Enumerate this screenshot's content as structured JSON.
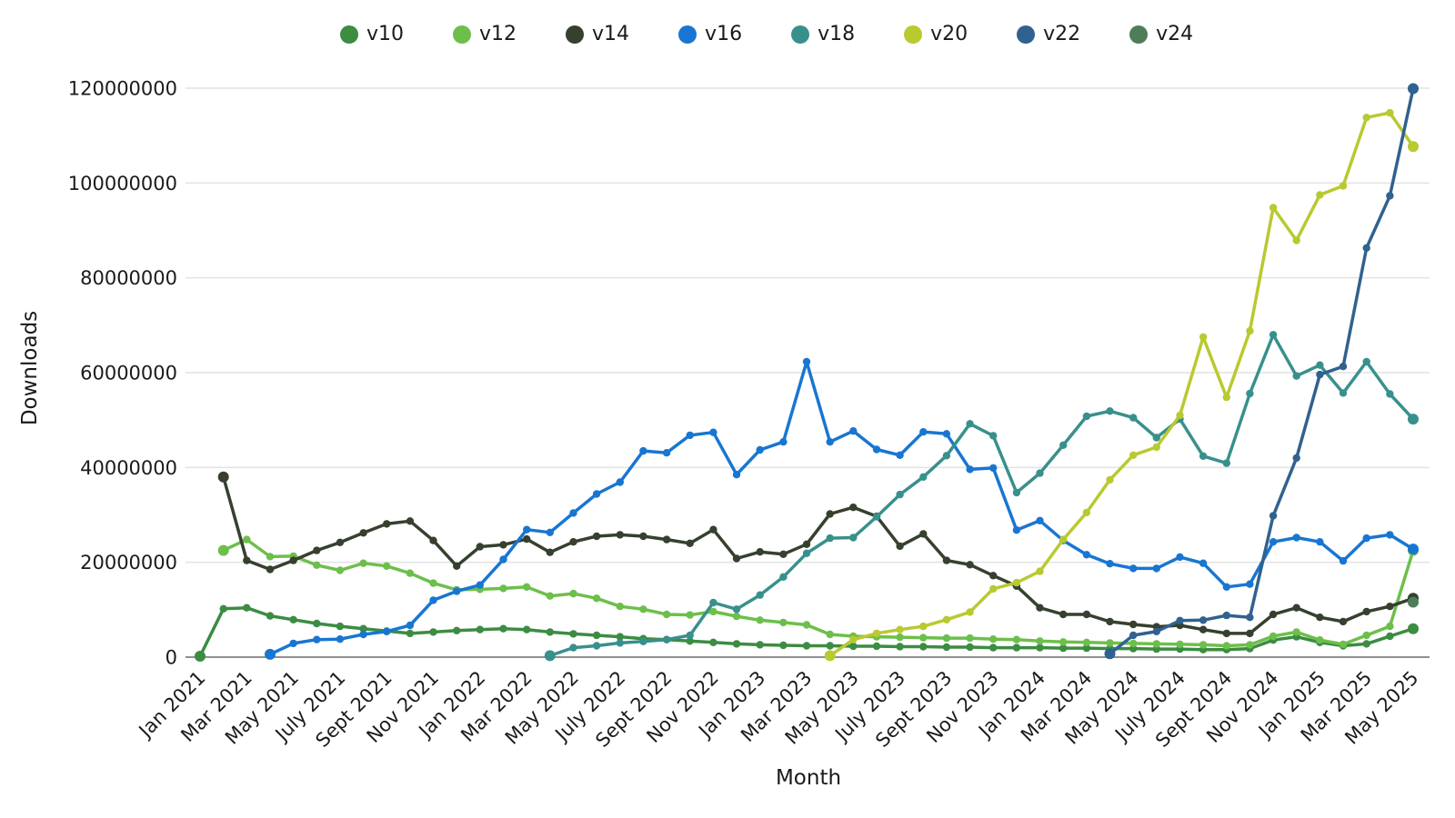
{
  "chart_data": {
    "type": "line",
    "title": "",
    "xlabel": "Month",
    "ylabel": "Downloads",
    "grid": "horizontal",
    "legend_position": "top",
    "ylim": [
      0,
      120000000
    ],
    "y_ticks": [
      0,
      20000000,
      40000000,
      60000000,
      80000000,
      100000000,
      120000000
    ],
    "x_tick_step": 2,
    "months": [
      "Jan 2021",
      "Feb 2021",
      "Mar 2021",
      "Apr 2021",
      "May 2021",
      "June 2021",
      "July 2021",
      "Aug 2021",
      "Sept 2021",
      "Oct 2021",
      "Nov 2021",
      "Dec 2021",
      "Jan 2022",
      "Feb 2022",
      "Mar 2022",
      "Apr 2022",
      "May 2022",
      "June 2022",
      "July 2022",
      "Aug 2022",
      "Sept 2022",
      "Oct 2022",
      "Nov 2022",
      "Dec 2022",
      "Jan 2023",
      "Feb 2023",
      "Mar 2023",
      "Apr 2023",
      "May 2023",
      "June 2023",
      "July 2023",
      "Aug 2023",
      "Sept 2023",
      "Oct 2023",
      "Nov 2023",
      "Dec 2023",
      "Jan 2024",
      "Feb 2024",
      "Mar 2024",
      "Apr 2024",
      "May 2024",
      "June 2024",
      "July 2024",
      "Aug 2024",
      "Sept 2024",
      "Oct 2024",
      "Nov 2024",
      "Dec 2024",
      "Jan 2025",
      "Feb 2025",
      "Mar 2025",
      "Apr 2025",
      "May 2025"
    ],
    "series": [
      {
        "name": "v10",
        "color": "#3c8c42",
        "values": [
          200000,
          10200000,
          10400000,
          8700000,
          7900000,
          7100000,
          6500000,
          6000000,
          5500000,
          5000000,
          5300000,
          5600000,
          5800000,
          6000000,
          5800000,
          5300000,
          4900000,
          4600000,
          4300000,
          3900000,
          3700000,
          3400000,
          3100000,
          2800000,
          2600000,
          2500000,
          2400000,
          2400000,
          2300000,
          2300000,
          2200000,
          2200000,
          2100000,
          2100000,
          2000000,
          2000000,
          2000000,
          1900000,
          1900000,
          1800000,
          1800000,
          1700000,
          1700000,
          1600000,
          1600000,
          1800000,
          3600000,
          4300000,
          3100000,
          2400000,
          2800000,
          4400000,
          6000000
        ]
      },
      {
        "name": "v12",
        "color": "#6dbf4b",
        "values": [
          null,
          22500000,
          24800000,
          21200000,
          21300000,
          19400000,
          18300000,
          19800000,
          19200000,
          17700000,
          15600000,
          14200000,
          14300000,
          14500000,
          14800000,
          12900000,
          13400000,
          12400000,
          10700000,
          10100000,
          9000000,
          8900000,
          9600000,
          8600000,
          7800000,
          7300000,
          6800000,
          4800000,
          4400000,
          4300000,
          4200000,
          4100000,
          4000000,
          4000000,
          3800000,
          3700000,
          3400000,
          3200000,
          3100000,
          3000000,
          2900000,
          2800000,
          2700000,
          2600000,
          2400000,
          2600000,
          4400000,
          5300000,
          3600000,
          2700000,
          4600000,
          6500000,
          22500000
        ]
      },
      {
        "name": "v14",
        "color": "#36402e",
        "values": [
          null,
          38000000,
          20400000,
          18500000,
          20400000,
          22500000,
          24200000,
          26200000,
          28100000,
          28700000,
          24600000,
          19200000,
          23300000,
          23700000,
          24900000,
          22100000,
          24300000,
          25500000,
          25800000,
          25500000,
          24800000,
          24000000,
          26900000,
          20800000,
          22200000,
          21700000,
          23800000,
          30200000,
          31600000,
          29700000,
          23400000,
          26000000,
          20400000,
          19500000,
          17200000,
          15000000,
          10400000,
          9000000,
          9000000,
          7500000,
          6900000,
          6400000,
          6700000,
          5800000,
          5000000,
          5000000,
          9000000,
          10400000,
          8400000,
          7500000,
          9600000,
          10700000,
          12400000
        ]
      },
      {
        "name": "v16",
        "color": "#1876d2",
        "values": [
          null,
          null,
          null,
          600000,
          2900000,
          3700000,
          3800000,
          4800000,
          5400000,
          6700000,
          12000000,
          13900000,
          15200000,
          20600000,
          26900000,
          26300000,
          30400000,
          34400000,
          36900000,
          43500000,
          43100000,
          46800000,
          47400000,
          38500000,
          43700000,
          45400000,
          62300000,
          45400000,
          47700000,
          43800000,
          42600000,
          47500000,
          47100000,
          39600000,
          39900000,
          26800000,
          28800000,
          24600000,
          21600000,
          19700000,
          18700000,
          18700000,
          21100000,
          19800000,
          14800000,
          15400000,
          24300000,
          25200000,
          24300000,
          20300000,
          25100000,
          25800000,
          22800000
        ]
      },
      {
        "name": "v18",
        "color": "#38908c",
        "values": [
          null,
          null,
          null,
          null,
          null,
          null,
          null,
          null,
          null,
          null,
          null,
          null,
          null,
          null,
          null,
          300000,
          2000000,
          2400000,
          3000000,
          3300000,
          3700000,
          4600000,
          11500000,
          10100000,
          13100000,
          16900000,
          21900000,
          25100000,
          25200000,
          29600000,
          34300000,
          38000000,
          42500000,
          49200000,
          46700000,
          34700000,
          38800000,
          44700000,
          50800000,
          51900000,
          50500000,
          46300000,
          50200000,
          42400000,
          40900000,
          55600000,
          68000000,
          59300000,
          61600000,
          55700000,
          62300000,
          55500000,
          50200000
        ]
      },
      {
        "name": "v20",
        "color": "#b9c930",
        "values": [
          null,
          null,
          null,
          null,
          null,
          null,
          null,
          null,
          null,
          null,
          null,
          null,
          null,
          null,
          null,
          null,
          null,
          null,
          null,
          null,
          null,
          null,
          null,
          null,
          null,
          null,
          null,
          300000,
          3700000,
          5000000,
          5800000,
          6500000,
          7900000,
          9500000,
          14400000,
          15700000,
          18100000,
          24800000,
          30500000,
          37400000,
          42600000,
          44300000,
          51000000,
          67500000,
          54800000,
          68800000,
          94800000,
          87900000,
          97500000,
          99400000,
          113800000,
          114800000,
          107700000
        ]
      },
      {
        "name": "v22",
        "color": "#31618f",
        "values": [
          null,
          null,
          null,
          null,
          null,
          null,
          null,
          null,
          null,
          null,
          null,
          null,
          null,
          null,
          null,
          null,
          null,
          null,
          null,
          null,
          null,
          null,
          null,
          null,
          null,
          null,
          null,
          null,
          null,
          null,
          null,
          null,
          null,
          null,
          null,
          null,
          null,
          null,
          null,
          700000,
          4600000,
          5400000,
          7700000,
          7800000,
          8800000,
          8400000,
          29800000,
          42000000,
          59600000,
          61300000,
          86300000,
          97300000,
          119900000
        ]
      },
      {
        "name": "v24",
        "color": "#4e7d58",
        "values": [
          null,
          null,
          null,
          null,
          null,
          null,
          null,
          null,
          null,
          null,
          null,
          null,
          null,
          null,
          null,
          null,
          null,
          null,
          null,
          null,
          null,
          null,
          null,
          null,
          null,
          null,
          null,
          null,
          null,
          null,
          null,
          null,
          null,
          null,
          null,
          null,
          null,
          null,
          null,
          null,
          null,
          null,
          null,
          null,
          null,
          null,
          null,
          null,
          null,
          null,
          null,
          null,
          11600000
        ]
      }
    ],
    "axis_color": "#8f8f8f",
    "grid_color": "#e2e2e2"
  }
}
